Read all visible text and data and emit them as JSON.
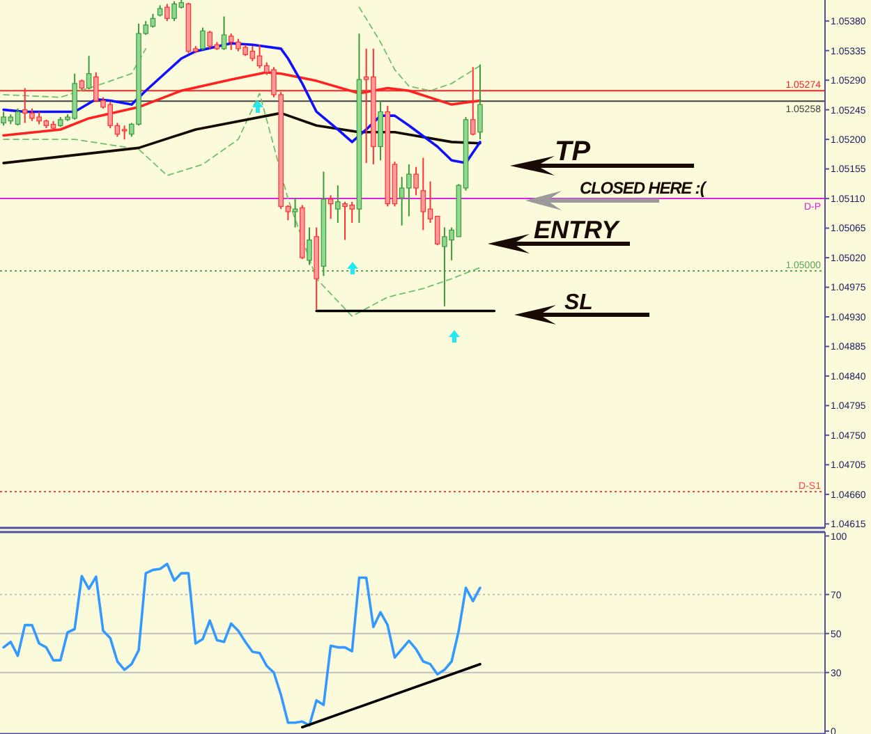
{
  "chart_data": [
    {
      "type": "candlestick",
      "categories": [
        null,
        null,
        null,
        null,
        null,
        null,
        null,
        null,
        null,
        null,
        null,
        null,
        null,
        null,
        null,
        null,
        null,
        null,
        null,
        null,
        null,
        null,
        null,
        null,
        null,
        null,
        null,
        null,
        null,
        null,
        null,
        null,
        null,
        null,
        null,
        null,
        null,
        null,
        null,
        null,
        null,
        null,
        null,
        null,
        null,
        null,
        null,
        null,
        null,
        null,
        null,
        null,
        null,
        null,
        null,
        null,
        null,
        null,
        null,
        null,
        null,
        null,
        null,
        null,
        null,
        null,
        null,
        null,
        null,
        null,
        null,
        null,
        null,
        null,
        null,
        null,
        null,
        null,
        null,
        null,
        null,
        null,
        null,
        null,
        null,
        null,
        null,
        null,
        null,
        null,
        null,
        null,
        null,
        null,
        null,
        null,
        null,
        null,
        null,
        null,
        null,
        null,
        null,
        null,
        null,
        null,
        null,
        null,
        null,
        null,
        null,
        null,
        null,
        null,
        null,
        null
      ],
      "ohlc": [
        [
          1.05225,
          1.05242,
          1.05221,
          1.05234
        ],
        [
          1.05228,
          1.05238,
          1.05223,
          1.05234
        ],
        [
          1.05223,
          1.05247,
          1.05221,
          1.05242
        ],
        [
          1.05245,
          1.05278,
          1.05225,
          1.0524
        ],
        [
          1.0524,
          1.05247,
          1.05228,
          1.05232
        ],
        [
          1.05234,
          1.05242,
          1.05223,
          1.05228
        ],
        [
          1.05228,
          1.0523,
          1.05217,
          1.05221
        ],
        [
          1.05223,
          1.05228,
          1.05215,
          1.05217
        ],
        [
          1.05221,
          1.05234,
          1.05219,
          1.0523
        ],
        [
          1.0523,
          1.05238,
          1.05228,
          1.05234
        ],
        [
          1.05232,
          1.053,
          1.0523,
          1.05285
        ],
        [
          1.05289,
          1.05291,
          1.05274,
          1.05278
        ],
        [
          1.05278,
          1.05327,
          1.05276,
          1.053
        ],
        [
          1.05295,
          1.05302,
          1.05257,
          1.05259
        ],
        [
          1.05259,
          1.05264,
          1.05247,
          1.05249
        ],
        [
          1.05253,
          1.05257,
          1.05217,
          1.05221
        ],
        [
          1.05221,
          1.05225,
          1.05204,
          1.05208
        ],
        [
          1.05215,
          1.05221,
          1.052,
          1.05213
        ],
        [
          1.05208,
          1.05225,
          1.05204,
          1.05223
        ],
        [
          1.05223,
          1.05376,
          1.05221,
          1.05361
        ],
        [
          1.05361,
          1.0538,
          1.05359,
          1.05374
        ],
        [
          1.05372,
          1.05391,
          1.0537,
          1.05384
        ],
        [
          1.05389,
          1.05404,
          1.05387,
          1.05399
        ],
        [
          1.05401,
          1.05406,
          1.0538,
          1.05384
        ],
        [
          1.05384,
          1.0541,
          1.0538,
          1.05406
        ],
        [
          1.05401,
          1.05412,
          1.05399,
          1.05408
        ],
        [
          1.05406,
          1.05408,
          1.05331,
          1.05334
        ],
        [
          1.05338,
          1.05342,
          1.05331,
          1.05334
        ],
        [
          1.05338,
          1.0537,
          1.05336,
          1.05365
        ],
        [
          1.05363,
          1.05365,
          1.05338,
          1.05342
        ],
        [
          1.05344,
          1.05348,
          1.05336,
          1.05338
        ],
        [
          1.05338,
          1.05387,
          1.05336,
          1.05359
        ],
        [
          1.05357,
          1.05361,
          1.05336,
          1.05348
        ],
        [
          1.05348,
          1.05353,
          1.05334,
          1.05338
        ],
        [
          1.0534,
          1.05344,
          1.05327,
          1.05329
        ],
        [
          1.05334,
          1.05342,
          1.05319,
          1.05323
        ],
        [
          1.05327,
          1.05344,
          1.05308,
          1.05312
        ],
        [
          1.05312,
          1.05317,
          1.05298,
          1.05302
        ],
        [
          1.05306,
          1.0531,
          1.05264,
          1.05268
        ],
        [
          1.05268,
          1.05272,
          1.05094,
          1.05098
        ],
        [
          1.05098,
          1.051,
          1.05077,
          1.0509
        ],
        [
          1.0509,
          1.05111,
          1.05066,
          1.05094
        ],
        [
          1.05096,
          1.051,
          1.05018,
          1.0502
        ],
        [
          1.05016,
          1.05066,
          1.05009,
          1.05047
        ],
        [
          1.05052,
          1.05066,
          1.04941,
          1.04988
        ],
        [
          1.05007,
          1.05151,
          1.04992,
          1.05109
        ],
        [
          1.05109,
          1.05115,
          1.05079,
          1.05102
        ],
        [
          1.05094,
          1.0513,
          1.05073,
          1.05105
        ],
        [
          1.05102,
          1.05105,
          1.05047,
          1.05098
        ],
        [
          1.051,
          1.05105,
          1.05073,
          1.05094
        ],
        [
          1.05094,
          1.05361,
          1.05073,
          1.05291
        ],
        [
          1.05295,
          1.05338,
          1.05164,
          1.05291
        ],
        [
          1.05295,
          1.05338,
          1.05162,
          1.05189
        ],
        [
          1.05189,
          1.05259,
          1.05168,
          1.05242
        ],
        [
          1.05242,
          1.05251,
          1.05098,
          1.05102
        ],
        [
          1.05162,
          1.05166,
          1.05098,
          1.05102
        ],
        [
          1.05111,
          1.05143,
          1.05069,
          1.05126
        ],
        [
          1.05126,
          1.05162,
          1.05083,
          1.05147
        ],
        [
          1.05147,
          1.05158,
          1.05115,
          1.05126
        ],
        [
          1.05122,
          1.05172,
          1.05062,
          1.0509
        ],
        [
          1.05094,
          1.05136,
          1.05073,
          1.05079
        ],
        [
          1.05083,
          1.05083,
          1.05039,
          1.05041
        ],
        [
          1.05037,
          1.05066,
          1.04946,
          1.05052
        ],
        [
          1.05047,
          1.05066,
          1.05016,
          1.05062
        ],
        [
          1.05052,
          1.05132,
          1.05052,
          1.0513
        ],
        [
          1.05126,
          1.05234,
          1.05122,
          1.0523
        ],
        [
          1.0523,
          1.0531,
          1.05206,
          1.05208
        ],
        [
          1.05211,
          1.05314,
          1.052,
          1.05253
        ],
        null,
        null,
        null,
        null,
        null,
        null,
        null,
        null,
        null,
        null,
        null,
        null,
        null,
        null,
        null,
        null,
        null,
        null,
        null,
        null,
        null,
        null,
        null,
        null,
        null,
        null,
        null,
        null,
        null,
        null,
        null,
        null,
        null,
        null,
        null,
        null,
        null,
        null,
        null,
        null,
        null,
        null,
        null,
        null,
        null,
        null,
        null,
        null
      ],
      "ylim": [
        1.04609,
        1.05412
      ],
      "yticks": [
        {
          "value": 1.0538,
          "label": "1.05380"
        },
        {
          "value": 1.05335,
          "label": "1.05335"
        },
        {
          "value": 1.0529,
          "label": "1.05290"
        },
        {
          "value": 1.05245,
          "label": "1.05245"
        },
        {
          "value": 1.052,
          "label": "1.05200"
        },
        {
          "value": 1.05155,
          "label": "1.05155"
        },
        {
          "value": 1.0511,
          "label": "1.05110"
        },
        {
          "value": 1.05065,
          "label": "1.05065"
        },
        {
          "value": 1.0502,
          "label": "1.05020"
        },
        {
          "value": 1.04975,
          "label": "1.04975"
        },
        {
          "value": 1.0493,
          "label": "1.04930"
        },
        {
          "value": 1.04885,
          "label": "1.04885"
        },
        {
          "value": 1.0484,
          "label": "1.04840"
        },
        {
          "value": 1.04795,
          "label": "1.04795"
        },
        {
          "value": 1.0475,
          "label": "1.04750"
        },
        {
          "value": 1.04705,
          "label": "1.04705"
        },
        {
          "value": 1.0466,
          "label": "1.04660"
        },
        {
          "value": 1.04615,
          "label": "1.04615"
        }
      ],
      "tick_labels": "y",
      "series": [
        {
          "type": "line",
          "color": "#6fbf6f",
          "line_style": "dashed",
          "values": [
            1.05268,
            null,
            null,
            null,
            null,
            null,
            null,
            null,
            1.05264,
            null,
            null,
            null,
            null,
            null,
            1.05285,
            null,
            null,
            null,
            1.053,
            null,
            1.05338,
            null,
            null,
            null,
            null,
            null,
            null,
            null,
            null,
            null,
            null,
            null,
            null,
            null,
            null,
            null,
            null,
            null,
            null,
            null,
            null,
            null,
            null,
            null,
            null,
            null,
            null,
            null,
            null,
            null,
            null,
            null,
            null,
            null,
            null,
            null,
            null,
            null,
            null,
            null,
            null,
            null,
            null,
            null,
            null,
            null,
            null,
            null,
            null,
            null,
            null,
            null,
            null,
            null,
            null,
            null,
            null,
            null,
            null,
            null,
            null,
            null,
            null,
            null,
            null,
            null,
            null,
            null,
            null,
            null,
            null,
            null,
            null,
            null,
            null,
            null,
            null,
            null,
            null,
            null,
            null,
            null,
            null,
            null,
            null,
            null,
            null,
            null,
            null,
            null,
            null,
            null,
            null,
            null,
            null,
            null
          ]
        },
        {
          "type": "line",
          "color": "#6fbf6f",
          "line_style": "dashed",
          "values": [
            null,
            null,
            null,
            null,
            null,
            null,
            null,
            null,
            null,
            null,
            null,
            null,
            null,
            null,
            null,
            null,
            null,
            null,
            null,
            null,
            null,
            null,
            null,
            null,
            null,
            null,
            null,
            null,
            null,
            null,
            null,
            null,
            null,
            null,
            null,
            null,
            null,
            null,
            null,
            null,
            null,
            null,
            null,
            null,
            null,
            null,
            null,
            null,
            null,
            null,
            1.05401,
            null,
            null,
            1.05348,
            null,
            1.05306,
            null,
            1.05281,
            null,
            null,
            1.05274,
            null,
            null,
            1.05285,
            null,
            null,
            null,
            1.05312,
            null,
            null,
            null,
            null,
            null,
            null,
            null,
            null,
            null,
            null,
            null,
            null,
            null,
            null,
            null,
            null,
            null,
            null,
            null,
            null,
            null,
            null,
            null,
            null,
            null,
            null,
            null,
            null,
            null,
            null,
            null,
            null,
            null,
            null,
            null,
            null,
            null,
            null,
            null,
            null,
            null,
            null,
            null,
            null,
            null,
            null,
            null,
            null
          ]
        },
        {
          "type": "line",
          "color": "#6fbf6f",
          "line_style": "dashed",
          "values": [
            1.052,
            null,
            null,
            null,
            null,
            null,
            null,
            null,
            null,
            null,
            1.052,
            null,
            null,
            null,
            null,
            null,
            null,
            null,
            null,
            1.05185,
            null,
            null,
            null,
            1.05145,
            null,
            null,
            null,
            null,
            1.05162,
            null,
            null,
            null,
            null,
            1.052,
            null,
            null,
            1.0527,
            null,
            null,
            null,
            1.05109,
            null,
            null,
            null,
            1.04988,
            null,
            null,
            null,
            null,
            1.04931,
            null,
            null,
            null,
            null,
            1.0496,
            null,
            null,
            null,
            null,
            1.04973,
            null,
            null,
            null,
            1.04988,
            null,
            null,
            null,
            1.05005,
            null,
            null,
            null,
            null,
            null,
            null,
            null,
            null,
            null,
            null,
            null,
            null,
            null,
            null,
            null,
            null,
            null,
            null,
            null,
            null,
            null,
            null,
            null,
            null,
            null,
            null,
            null,
            null,
            null,
            null,
            null,
            null,
            null,
            null,
            null,
            null,
            null,
            null,
            null,
            null,
            null,
            null,
            null,
            null,
            null,
            null,
            null,
            null
          ]
        },
        {
          "type": "line",
          "color": "#140a00",
          "values": [
            1.05164,
            null,
            null,
            null,
            null,
            null,
            null,
            null,
            null,
            null,
            null,
            null,
            null,
            null,
            null,
            null,
            null,
            null,
            null,
            1.05187,
            null,
            null,
            null,
            null,
            null,
            null,
            null,
            1.05215,
            null,
            null,
            null,
            null,
            null,
            null,
            null,
            null,
            null,
            null,
            null,
            1.0524,
            null,
            null,
            null,
            null,
            1.05221,
            null,
            null,
            null,
            null,
            null,
            1.05211,
            null,
            null,
            null,
            null,
            1.05211,
            null,
            null,
            null,
            null,
            null,
            null,
            null,
            1.05196,
            null,
            null,
            null,
            1.05194,
            null,
            null,
            null,
            null,
            null,
            null,
            null,
            null,
            null,
            null,
            null,
            null,
            null,
            null,
            null,
            null,
            null,
            null,
            null,
            null,
            null,
            null,
            null,
            null,
            null,
            null,
            null,
            null,
            null,
            null,
            null,
            null,
            null,
            null,
            null,
            null,
            null,
            null,
            null,
            null,
            null,
            null,
            null,
            null,
            null,
            null,
            null,
            null
          ]
        },
        {
          "type": "line",
          "color": "#ff2020",
          "values": [
            1.05206,
            null,
            null,
            null,
            null,
            null,
            null,
            null,
            1.05215,
            null,
            null,
            null,
            1.05232,
            null,
            null,
            null,
            null,
            null,
            null,
            1.05249,
            null,
            null,
            null,
            null,
            null,
            1.05274,
            null,
            null,
            null,
            null,
            null,
            null,
            1.05291,
            null,
            null,
            null,
            null,
            1.05302,
            null,
            1.053,
            null,
            null,
            null,
            null,
            1.05289,
            null,
            null,
            null,
            null,
            null,
            1.0527,
            null,
            null,
            null,
            1.05278,
            null,
            null,
            1.05274,
            null,
            null,
            null,
            null,
            null,
            1.05253,
            null,
            null,
            null,
            1.05259,
            null,
            null,
            null,
            null,
            null,
            null,
            null,
            null,
            null,
            null,
            null,
            null,
            null,
            null,
            null,
            null,
            null,
            null,
            null,
            null,
            null,
            null,
            null,
            null,
            null,
            null,
            null,
            null,
            null,
            null,
            null,
            null,
            null,
            null,
            null,
            null,
            null,
            null,
            null,
            null,
            null,
            null,
            null,
            null,
            null,
            null,
            null,
            null
          ]
        },
        {
          "type": "line",
          "color": "#1010ff",
          "values": [
            1.05245,
            null,
            null,
            1.05242,
            null,
            null,
            null,
            null,
            null,
            null,
            1.05242,
            null,
            null,
            1.05261,
            null,
            1.05259,
            null,
            null,
            1.05253,
            null,
            1.05274,
            null,
            null,
            null,
            null,
            1.05323,
            null,
            1.05334,
            null,
            null,
            null,
            null,
            1.05346,
            null,
            null,
            1.05344,
            null,
            null,
            null,
            1.05338,
            1.05323,
            null,
            1.05285,
            null,
            1.05242,
            null,
            null,
            1.05215,
            null,
            1.05196,
            null,
            1.05215,
            null,
            1.05236,
            null,
            1.05236,
            null,
            1.05221,
            null,
            null,
            null,
            1.05189,
            null,
            1.05168,
            null,
            1.05164,
            null,
            1.05196,
            null,
            null,
            null,
            null,
            null,
            null,
            null,
            null,
            null,
            null,
            null,
            null,
            null,
            null,
            null,
            null,
            null,
            null,
            null,
            null,
            null,
            null,
            null,
            null,
            null,
            null,
            null,
            null,
            null,
            null,
            null,
            null,
            null,
            null,
            null,
            null,
            null,
            null,
            null,
            null,
            null,
            null,
            null,
            null,
            null,
            null,
            null,
            null
          ]
        },
        {
          "type": "line",
          "color": "#000000",
          "values": [
            null,
            null,
            null,
            null,
            null,
            null,
            null,
            null,
            null,
            null,
            null,
            null,
            null,
            null,
            null,
            null,
            null,
            null,
            null,
            null,
            null,
            null,
            null,
            null,
            null,
            null,
            null,
            null,
            null,
            null,
            null,
            null,
            null,
            null,
            null,
            null,
            null,
            null,
            null,
            null,
            null,
            null,
            null,
            null,
            1.04939,
            null,
            null,
            null,
            null,
            null,
            null,
            null,
            null,
            null,
            null,
            null,
            null,
            null,
            null,
            null,
            null,
            null,
            null,
            null,
            null,
            null,
            null,
            null,
            null,
            1.04939,
            null,
            null,
            null,
            null,
            null,
            null,
            null,
            null,
            null,
            null,
            null,
            null,
            null,
            null,
            null,
            null,
            null,
            null,
            null,
            null,
            null,
            null,
            null,
            null,
            null,
            null,
            null,
            null,
            null,
            null,
            null,
            null,
            null,
            null,
            null,
            null,
            null,
            null,
            null,
            null,
            null,
            null,
            null,
            null,
            null,
            null
          ]
        }
      ],
      "ref_lines": [
        {
          "axis": "y",
          "value": 1.05274,
          "label": "1.05274",
          "color": "#ff2020"
        },
        {
          "axis": "y",
          "value": 1.05258,
          "label": "1.05258",
          "color": "#404040"
        },
        {
          "axis": "y",
          "value": 1.05,
          "label": "1.05000",
          "color": "#5aa55a",
          "line_style": "dotted"
        },
        {
          "axis": "y",
          "value": 1.0511,
          "label": "D-P",
          "color": "#e020e0"
        },
        {
          "axis": "y",
          "value": 1.04664,
          "label": "D-S1",
          "color": "#ff4040",
          "line_style": "dotted"
        }
      ],
      "annotations": [
        "TP",
        "CLOSED HERE :(",
        "ENTRY",
        "SL"
      ]
    },
    {
      "type": "line",
      "categories": [
        null,
        null,
        null,
        null,
        null,
        null,
        null,
        null,
        null,
        null,
        null,
        null,
        null,
        null,
        null,
        null,
        null,
        null,
        null,
        null,
        null,
        null,
        null,
        null,
        null,
        null,
        null,
        null,
        null,
        null,
        null,
        null,
        null,
        null,
        null,
        null,
        null,
        null,
        null,
        null,
        null,
        null,
        null,
        null,
        null,
        null,
        null,
        null,
        null,
        null,
        null,
        null,
        null,
        null,
        null,
        null,
        null,
        null,
        null,
        null,
        null,
        null,
        null,
        null,
        null,
        null,
        null,
        null,
        null,
        null,
        null,
        null,
        null,
        null,
        null,
        null,
        null,
        null,
        null,
        null,
        null,
        null,
        null,
        null,
        null,
        null,
        null,
        null,
        null,
        null,
        null,
        null,
        null,
        null,
        null,
        null,
        null,
        null,
        null,
        null,
        null,
        null,
        null,
        null,
        null,
        null,
        null,
        null,
        null,
        null,
        null,
        null,
        null,
        null,
        null,
        null
      ],
      "ylim": [
        -1.5,
        102
      ],
      "yticks": [
        0,
        30,
        50,
        70,
        100
      ],
      "tick_labels": "y",
      "series": [
        {
          "color": "#3399ff",
          "values": [
            42.9,
            45.7,
            38.6,
            54.3,
            54.3,
            44.9,
            42.9,
            36.3,
            36.3,
            50.6,
            52.3,
            79.4,
            72.9,
            79.1,
            51.4,
            47.7,
            35.7,
            31.4,
            34.3,
            41.4,
            80.9,
            82.6,
            83.1,
            85.7,
            77.1,
            80.9,
            80.9,
            44.9,
            47.1,
            56.6,
            46.6,
            45.7,
            55.1,
            51.4,
            45.7,
            40.6,
            40,
            33.4,
            30,
            18.6,
            4.3,
            4.3,
            4.9,
            2.9,
            15.7,
            13.4,
            43.7,
            42.9,
            42.9,
            40.9,
            78.6,
            78.6,
            53.4,
            60.9,
            54.3,
            37.7,
            42,
            46.3,
            42,
            35.7,
            34.3,
            29.1,
            31.4,
            35.7,
            51.4,
            73.4,
            66.6,
            73.4,
            null,
            null,
            null,
            null,
            null,
            null,
            null,
            null,
            null,
            null,
            null,
            null,
            null,
            null,
            null,
            null,
            null,
            null,
            null,
            null,
            null,
            null,
            null,
            null,
            null,
            null,
            null,
            null,
            null,
            null,
            null,
            null,
            null,
            null,
            null,
            null,
            null,
            null,
            null,
            null,
            null,
            null,
            null,
            null,
            null,
            null,
            null,
            null
          ]
        },
        {
          "color": "#000000",
          "values": [
            null,
            null,
            null,
            null,
            null,
            null,
            null,
            null,
            null,
            null,
            null,
            null,
            null,
            null,
            null,
            null,
            null,
            null,
            null,
            null,
            null,
            null,
            null,
            null,
            null,
            null,
            null,
            null,
            null,
            null,
            null,
            null,
            null,
            null,
            null,
            null,
            null,
            null,
            null,
            null,
            null,
            null,
            2,
            null,
            null,
            null,
            null,
            null,
            null,
            null,
            null,
            null,
            null,
            null,
            null,
            null,
            null,
            null,
            null,
            null,
            null,
            null,
            null,
            null,
            null,
            null,
            null,
            34.3,
            null,
            null,
            null,
            null,
            null,
            null,
            null,
            null,
            null,
            null,
            null,
            null,
            null,
            null,
            null,
            null,
            null,
            null,
            null,
            null,
            null,
            null,
            null,
            null,
            null,
            null,
            null,
            null,
            null,
            null,
            null,
            null,
            null,
            null,
            null,
            null,
            null,
            null,
            null,
            null,
            null,
            null,
            null,
            null,
            null,
            null,
            null,
            null
          ]
        }
      ],
      "ref_lines": [
        {
          "axis": "y",
          "value": 70,
          "color": "#c0c0c0",
          "line_style": "dotted"
        },
        {
          "axis": "y",
          "value": 50,
          "color": "#c0c0c0"
        },
        {
          "axis": "y",
          "value": 30,
          "color": "#c0c0c0"
        }
      ]
    }
  ]
}
